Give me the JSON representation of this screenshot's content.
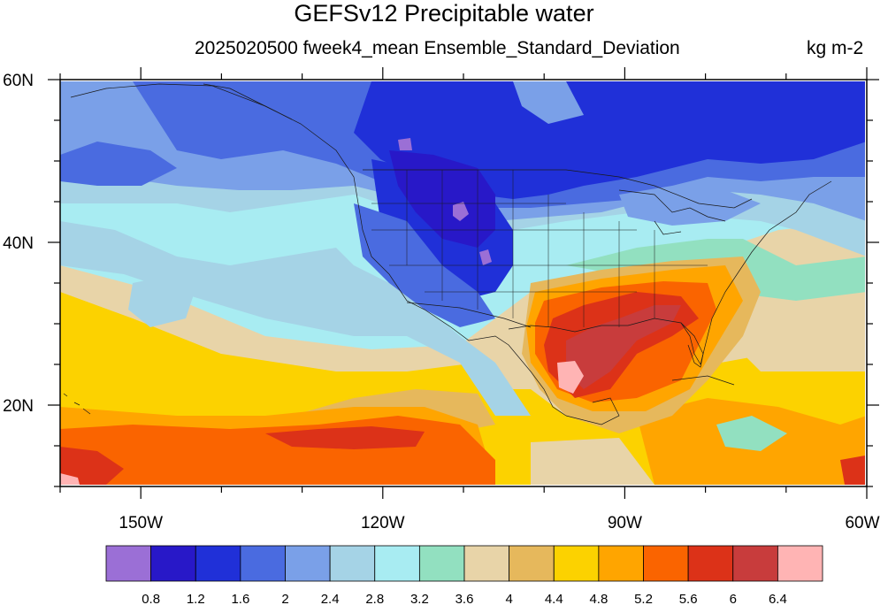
{
  "title": "GEFSv12 Precipitable water",
  "subtitle": "2025020500 fweek4_mean Ensemble_Standard_Deviation",
  "units": "kg m-2",
  "map": {
    "lon_range": [
      -160,
      -60
    ],
    "lat_range": [
      10,
      60
    ],
    "lon_ticks": [
      {
        "value": -150,
        "label": "150W"
      },
      {
        "value": -120,
        "label": "120W"
      },
      {
        "value": -90,
        "label": "90W"
      },
      {
        "value": -60,
        "label": "60W"
      }
    ],
    "lat_ticks": [
      {
        "value": 60,
        "label": "60N"
      },
      {
        "value": 40,
        "label": "40N"
      },
      {
        "value": 20,
        "label": "20N"
      }
    ]
  },
  "colorbar": {
    "colors": [
      "#9b6fd6",
      "#2818c8",
      "#2030d8",
      "#4a6be0",
      "#7aa0e8",
      "#a5d3e6",
      "#a8ecf2",
      "#92e0c0",
      "#e8d4a8",
      "#e6b85c",
      "#fcd200",
      "#ffa500",
      "#fa6400",
      "#dc3218",
      "#c83c3c",
      "#ffb4b4"
    ],
    "labels": [
      "0.8",
      "1.2",
      "1.6",
      "2",
      "2.4",
      "2.8",
      "3.2",
      "3.6",
      "4",
      "4.4",
      "4.8",
      "5.2",
      "5.6",
      "6",
      "6.4"
    ]
  }
}
